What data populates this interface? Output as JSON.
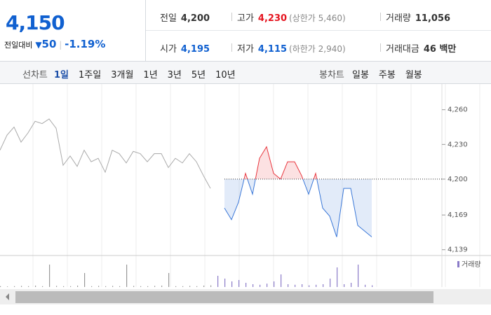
{
  "summary": {
    "price": "4,150",
    "change_label": "전일대비",
    "change": "50",
    "change_rate": "-1.19%"
  },
  "info": [
    [
      {
        "label": "전일",
        "value": "4,200"
      },
      {
        "label": "고가",
        "value": "4,230",
        "note": "(상한가 5,460)"
      },
      {
        "label": "거래량",
        "value": "11,056"
      }
    ],
    [
      {
        "label": "시가",
        "value": "4,195"
      },
      {
        "label": "저가",
        "value": "4,115",
        "note": "(하한가 2,940)"
      },
      {
        "label": "거래대금",
        "value": "46 백만"
      }
    ]
  ],
  "toolbar": {
    "line_label": "선차트",
    "line_periods": [
      "1일",
      "1주일",
      "3개월",
      "1년",
      "3년",
      "5년",
      "10년"
    ],
    "candle_label": "봉차트",
    "candle_periods": [
      "일봉",
      "주봉",
      "월봉"
    ]
  },
  "chart_data": {
    "type": "line",
    "baseline": 4200,
    "up_color": "#e8343c",
    "ylim": [
      4134,
      4281
    ],
    "yticks": [
      {
        "value": 4260,
        "label": "4,260"
      },
      {
        "value": 4230,
        "label": "4,230"
      },
      {
        "value": 4200,
        "label": "4,200"
      },
      {
        "value": 4169,
        "label": "4,169"
      },
      {
        "value": 4139,
        "label": "4,139"
      }
    ],
    "series": [
      {
        "color": "#aaaaaa",
        "values": [
          4225,
          4238,
          4245,
          4232,
          4240,
          4250,
          4248,
          4252,
          4244,
          4212,
          4220,
          4211,
          4225,
          4215,
          4218,
          4206,
          4225,
          4222,
          4214,
          4224,
          4222,
          4215,
          4222,
          4222,
          4210,
          4218,
          4214,
          4222,
          4215,
          4203,
          4192,
          null,
          null,
          null,
          null,
          null,
          null,
          null,
          null,
          null,
          null,
          null,
          null,
          null,
          null,
          null,
          null,
          null,
          null,
          null,
          null,
          null,
          null,
          null
        ]
      },
      {
        "color": "#3b78d8",
        "values": [
          null,
          null,
          null,
          null,
          null,
          null,
          null,
          null,
          null,
          null,
          null,
          null,
          null,
          null,
          null,
          null,
          null,
          null,
          null,
          null,
          null,
          null,
          null,
          null,
          null,
          null,
          null,
          null,
          null,
          null,
          null,
          null,
          4175,
          4165,
          4180,
          4205,
          4187,
          4218,
          4228,
          4205,
          4200,
          4215,
          4215,
          4203,
          4187,
          4205,
          4175,
          4168,
          4150,
          4192,
          4192,
          4160,
          4155,
          4150
        ]
      }
    ],
    "volume": {
      "legend": "거래량",
      "color": "#8a7bc8",
      "ylim": [
        0,
        100
      ],
      "values": [
        3,
        2,
        3,
        4,
        3,
        5,
        3,
        80,
        4,
        3,
        3,
        5,
        50,
        3,
        4,
        3,
        4,
        3,
        80,
        4,
        3,
        3,
        4,
        5,
        50,
        3,
        3,
        4,
        3,
        5,
        6,
        40,
        30,
        20,
        25,
        15,
        10,
        8,
        12,
        20,
        45,
        10,
        8,
        10,
        6,
        8,
        10,
        30,
        70,
        10,
        15,
        80,
        8,
        6
      ]
    }
  }
}
